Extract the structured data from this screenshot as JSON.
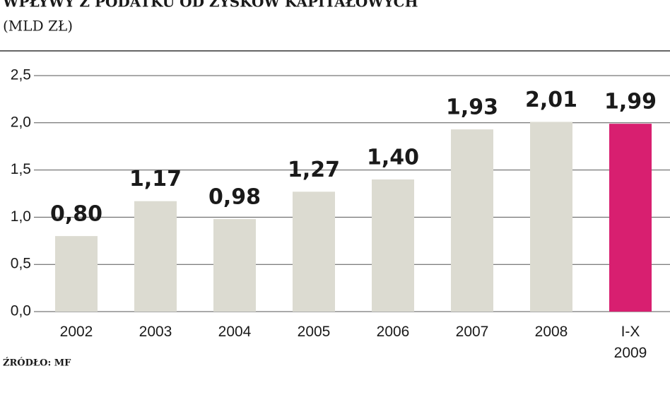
{
  "chart_data": {
    "type": "bar",
    "title": "WPŁYWY Z PODATKU OD ZYSKÓW KAPITAŁOWYCH",
    "subtitle": "(MLD ZŁ)",
    "source": "ŹRÓDŁO: MF",
    "categories": [
      "2002",
      "2003",
      "2004",
      "2005",
      "2006",
      "2007",
      "2008",
      "I-X\n2009"
    ],
    "values": [
      0.8,
      1.17,
      0.98,
      1.27,
      1.4,
      1.93,
      2.01,
      1.99
    ],
    "value_labels": [
      "0,80",
      "1,17",
      "0,98",
      "1,27",
      "1,40",
      "1,93",
      "2,01",
      "1,99"
    ],
    "colors": [
      "#dcdbd1",
      "#dcdbd1",
      "#dcdbd1",
      "#dcdbd1",
      "#dcdbd1",
      "#dcdbd1",
      "#dcdbd1",
      "#d81f70"
    ],
    "ylim": [
      0,
      2.5
    ],
    "yticks": [
      {
        "value": 0,
        "label": "0,0"
      },
      {
        "value": 0.5,
        "label": "0,5"
      },
      {
        "value": 1,
        "label": "1,0"
      },
      {
        "value": 1.5,
        "label": "1,5"
      },
      {
        "value": 2,
        "label": "2,0"
      },
      {
        "value": 2.5,
        "label": "2,5"
      }
    ],
    "grid": true
  }
}
